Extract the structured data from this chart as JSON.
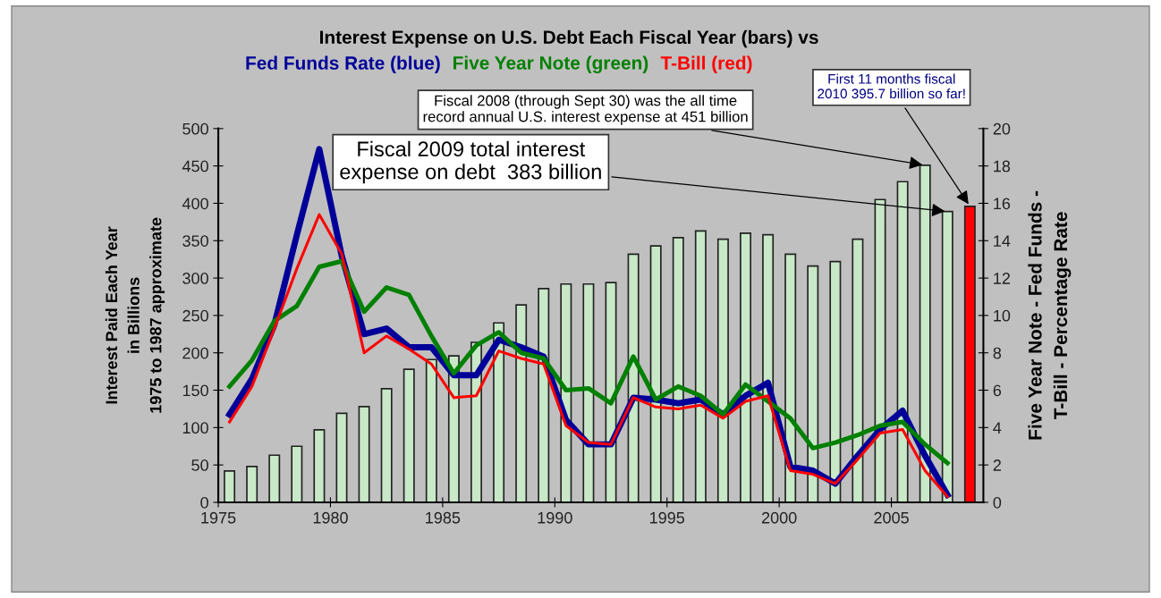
{
  "chart_data": {
    "type": "bar",
    "title": "Interest Expense on U.S. Debt Each Fiscal Year (bars) vs",
    "ylabel": "Interest Paid Each Year\nin Billions\n1975 to 1987 approximate",
    "y2label": "Five Year Note - Fed Funds -\nT-Bill - Percentage Rate",
    "xlim": [
      1975,
      2009.1
    ],
    "xticks": [
      1975,
      1980,
      1985,
      1990,
      1995,
      2000,
      2005
    ],
    "ylim": [
      0,
      500
    ],
    "yticks": [
      0,
      50,
      100,
      150,
      200,
      250,
      300,
      350,
      400,
      450,
      500
    ],
    "y2lim": [
      0,
      20
    ],
    "y2ticks": [
      0,
      2,
      4,
      6,
      8,
      10,
      12,
      14,
      16,
      18,
      20
    ],
    "grid": false,
    "legend": false,
    "series": [
      {
        "x": [
          1975.5,
          1976.5,
          1977.5,
          1978.5,
          1979.5,
          1980.5,
          1981.5,
          1982.5,
          1983.5,
          1984.5,
          1985.5,
          1986.5,
          1987.5,
          1988.5,
          1989.5,
          1990.5,
          1991.5,
          1992.5,
          1993.5,
          1994.5,
          1995.5,
          1996.5,
          1997.5,
          1998.5,
          1999.5,
          2000.5,
          2001.5,
          2002.5,
          2003.5,
          2004.5,
          2005.5,
          2006.5,
          2007.5,
          2008.5
        ],
        "values": [
          42,
          48,
          63,
          75,
          97,
          119,
          128,
          152,
          178,
          191,
          196,
          214,
          240,
          264,
          286,
          292,
          292,
          294,
          332,
          343,
          354,
          363,
          352,
          360,
          358,
          332,
          316,
          322,
          352,
          405,
          429,
          451,
          389,
          396
        ],
        "colors": [
          "#c8e8c8",
          "#c8e8c8",
          "#c8e8c8",
          "#c8e8c8",
          "#c8e8c8",
          "#c8e8c8",
          "#c8e8c8",
          "#c8e8c8",
          "#c8e8c8",
          "#c8e8c8",
          "#c8e8c8",
          "#c8e8c8",
          "#c8e8c8",
          "#c8e8c8",
          "#c8e8c8",
          "#c8e8c8",
          "#c8e8c8",
          "#c8e8c8",
          "#c8e8c8",
          "#c8e8c8",
          "#c8e8c8",
          "#c8e8c8",
          "#c8e8c8",
          "#c8e8c8",
          "#c8e8c8",
          "#c8e8c8",
          "#c8e8c8",
          "#c8e8c8",
          "#c8e8c8",
          "#c8e8c8",
          "#c8e8c8",
          "#c8e8c8",
          "#c8e8c8",
          "#ff0000"
        ]
      },
      {
        "type": "line",
        "axis": "y2",
        "name": "Fed Funds Rate (blue)",
        "color": "#000099",
        "x": [
          1975.5,
          1976.5,
          1977.5,
          1978.5,
          1979.5,
          1980.5,
          1981.5,
          1982.5,
          1983.5,
          1984.5,
          1985.5,
          1986.5,
          1987.5,
          1988.5,
          1989.5,
          1990.5,
          1991.5,
          1992.5,
          1993.5,
          1994.5,
          1995.5,
          1996.5,
          1997.5,
          1998.5,
          1999.5,
          2000.5,
          2001.5,
          2002.5,
          2003.5,
          2004.5,
          2005.5,
          2006.5,
          2007.5
        ],
        "values": [
          4.7,
          6.6,
          9.5,
          14.3,
          18.9,
          13.2,
          9.0,
          9.3,
          8.3,
          8.3,
          6.8,
          6.8,
          8.7,
          8.3,
          7.8,
          4.4,
          3.1,
          3.1,
          5.6,
          5.5,
          5.3,
          5.5,
          4.7,
          5.7,
          6.4,
          1.9,
          1.7,
          1.0,
          2.5,
          3.9,
          4.9,
          2.5,
          0.4
        ]
      },
      {
        "type": "line",
        "axis": "y2",
        "name": "Five Year Note (green)",
        "color": "#008000",
        "x": [
          1975.5,
          1976.5,
          1977.5,
          1978.5,
          1979.5,
          1980.5,
          1981.5,
          1982.5,
          1983.5,
          1984.5,
          1985.5,
          1986.5,
          1987.5,
          1988.5,
          1989.5,
          1990.5,
          1991.5,
          1992.5,
          1993.5,
          1994.5,
          1995.5,
          1996.5,
          1997.5,
          1998.5,
          1999.5,
          2000.5,
          2001.5,
          2002.5,
          2003.5,
          2004.5,
          2005.5,
          2006.5,
          2007.5
        ],
        "values": [
          6.2,
          7.6,
          9.7,
          10.5,
          12.6,
          12.9,
          10.2,
          11.5,
          11.1,
          8.9,
          6.9,
          8.4,
          9.1,
          8.0,
          7.7,
          6.0,
          6.1,
          5.3,
          7.8,
          5.5,
          6.2,
          5.7,
          4.7,
          6.3,
          5.4,
          4.5,
          2.9,
          3.2,
          3.6,
          4.1,
          4.3,
          3.1,
          2.1
        ]
      },
      {
        "type": "line",
        "axis": "y2",
        "name": "T-Bill (red)",
        "color": "#ff0000",
        "x": [
          1975.5,
          1976.5,
          1977.5,
          1978.5,
          1979.5,
          1980.5,
          1981.5,
          1982.5,
          1983.5,
          1984.5,
          1985.5,
          1986.5,
          1987.5,
          1988.5,
          1989.5,
          1990.5,
          1991.5,
          1992.5,
          1993.5,
          1994.5,
          1995.5,
          1996.5,
          1997.5,
          1998.5,
          1999.5,
          2000.5,
          2001.5,
          2002.5,
          2003.5,
          2004.5,
          2005.5,
          2006.5,
          2007.5
        ],
        "values": [
          4.3,
          6.2,
          9.3,
          12.5,
          15.4,
          13.3,
          8.0,
          8.9,
          8.2,
          7.4,
          5.6,
          5.7,
          8.1,
          7.7,
          7.4,
          4.1,
          3.2,
          3.1,
          5.6,
          5.1,
          5.0,
          5.2,
          4.5,
          5.4,
          5.7,
          1.7,
          1.5,
          1.0,
          2.3,
          3.7,
          3.9,
          1.7,
          0.3
        ]
      }
    ],
    "annotations": [
      {
        "text": "Fiscal 2008 (through Sept 30) was the all time\nrecord annual U.S. interest expense at 451 billion",
        "x": 2006.5,
        "y": 451
      },
      {
        "text": "Fiscal 2009 total interest\nexpense on debt  383 billion",
        "x": 2007.5,
        "y": 389
      },
      {
        "text": "First 11 months fiscal\n2010 395.7 billion so far!",
        "x": 2008.5,
        "y": 396
      }
    ]
  }
}
